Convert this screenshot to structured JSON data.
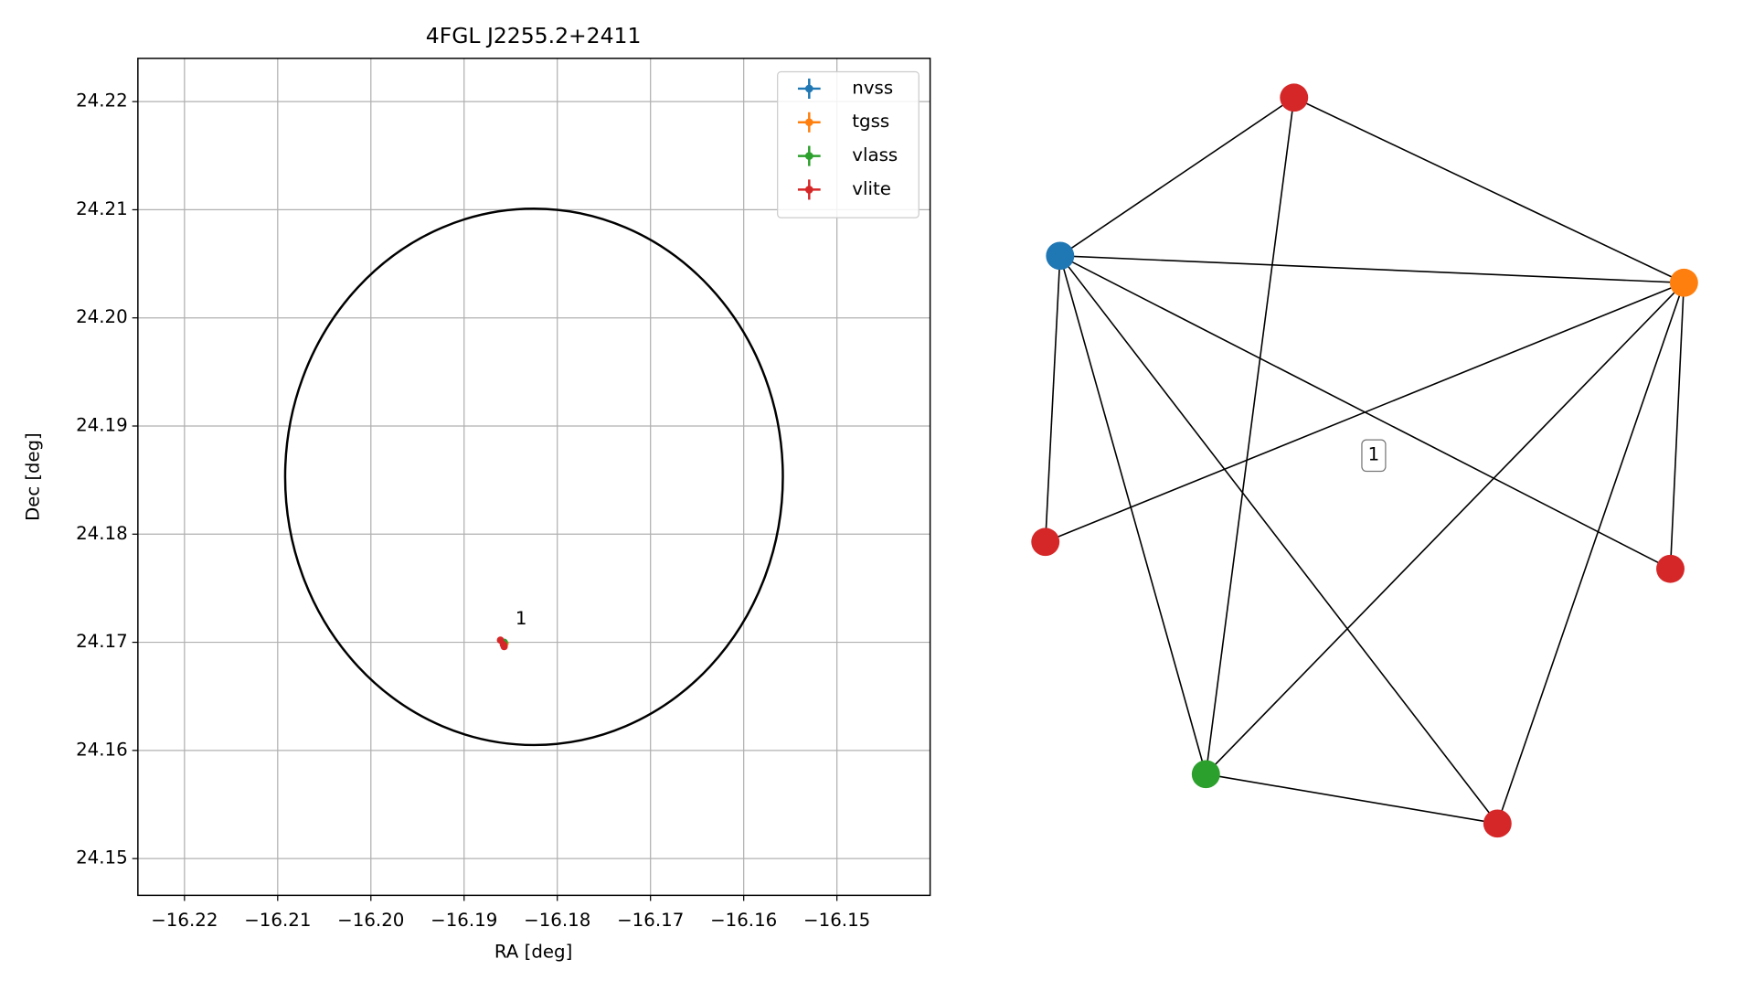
{
  "chart_data": [
    {
      "type": "scatter",
      "title": "4FGL J2255.2+2411",
      "xlabel": "RA [deg]",
      "ylabel": "Dec [deg]",
      "xlim": [
        -16.225,
        -16.14
      ],
      "ylim": [
        24.1466,
        24.224
      ],
      "xticks": [
        {
          "value": -16.22,
          "label": "−16.22"
        },
        {
          "value": -16.21,
          "label": "−16.21"
        },
        {
          "value": -16.2,
          "label": "−16.20"
        },
        {
          "value": -16.19,
          "label": "−16.19"
        },
        {
          "value": -16.18,
          "label": "−16.18"
        },
        {
          "value": -16.17,
          "label": "−16.17"
        },
        {
          "value": -16.16,
          "label": "−16.16"
        },
        {
          "value": -16.15,
          "label": "−16.15"
        }
      ],
      "yticks": [
        24.15,
        24.16,
        24.17,
        24.18,
        24.19,
        {
          "value": 24.2,
          "label": "24.20"
        },
        24.21,
        24.22
      ],
      "grid": true,
      "legend": "upper right",
      "region": {
        "x": -16.1825,
        "y": 24.1853,
        "rx": 0.0267,
        "ry": 0.0248,
        "color": "#000000"
      },
      "series": [
        {
          "name": "nvss",
          "color": "#1f77b4",
          "x": [
            -16.1857
          ],
          "y": [
            24.17
          ]
        },
        {
          "name": "tgss",
          "color": "#ff7f0e",
          "x": [
            -16.1856
          ],
          "y": [
            24.1699
          ]
        },
        {
          "name": "vlass",
          "color": "#2ca02c",
          "x": [
            -16.1857
          ],
          "y": [
            24.17
          ]
        },
        {
          "name": "vlite",
          "color": "#d62728",
          "x": [
            -16.1861,
            -16.1858,
            -16.1857
          ],
          "y": [
            24.1702,
            24.1698,
            24.1696
          ]
        }
      ],
      "annotations": [
        {
          "text": "1",
          "x": -16.1845,
          "y": 24.1715
        }
      ]
    },
    {
      "type": "network",
      "label": "1",
      "nodes": [
        {
          "color": "#d62728"
        },
        {
          "color": "#1f77b4"
        },
        {
          "color": "#ff7f0e"
        },
        {
          "color": "#d62728"
        },
        {
          "color": "#d62728"
        },
        {
          "color": "#2ca02c"
        },
        {
          "color": "#d62728"
        }
      ],
      "edges": [
        [
          0,
          1
        ],
        [
          0,
          2
        ],
        [
          0,
          5
        ],
        [
          1,
          2
        ],
        [
          1,
          3
        ],
        [
          1,
          5
        ],
        [
          1,
          6
        ],
        [
          1,
          4
        ],
        [
          2,
          3
        ],
        [
          2,
          5
        ],
        [
          2,
          6
        ],
        [
          2,
          4
        ],
        [
          5,
          6
        ]
      ]
    }
  ]
}
